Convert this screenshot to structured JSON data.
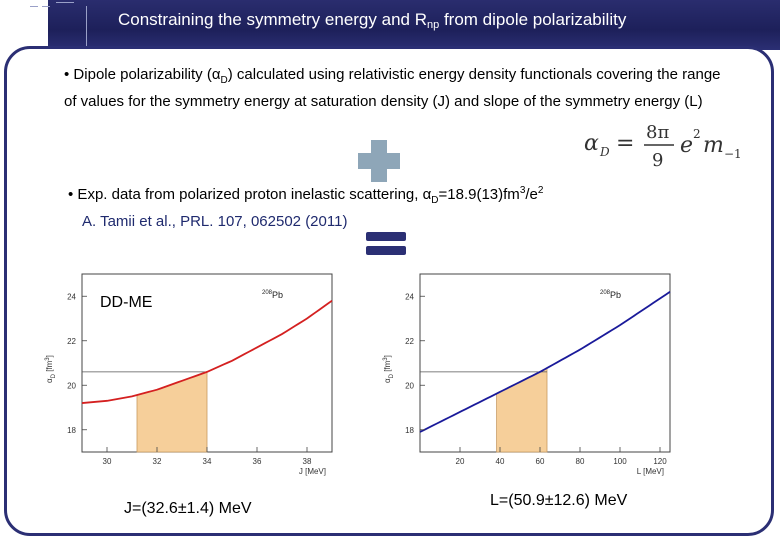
{
  "header": {
    "title_main": "Constraining the symmetry energy and R",
    "title_sub": "np",
    "title_end": " from dipole polarizability"
  },
  "bullet1": {
    "bullet": "•",
    "text_a": " Dipole polarizability (α",
    "text_sub": "D",
    "text_b": ") calculated using relativistic energy density functionals covering the range of values for the symmetry energy at saturation density (J) and slope of the symmetry energy (L)"
  },
  "formula": {
    "lhs": "α",
    "lhs_sub": "D",
    "eq": "=",
    "num": "8π",
    "den": "9",
    "rhs": "e",
    "rhs_sup": "2",
    "rhs2": "m",
    "rhs2_sub": "−1"
  },
  "bullet2": {
    "bullet": "•",
    "text_a": " Exp. data from polarized proton inelastic scattering, α",
    "text_sub": "D",
    "text_b": "=18.9(13)fm",
    "text_sup": "3",
    "text_c": "/e",
    "text_sup2": "2",
    "ref": "A. Tamii et al., PRL. 107, 062502 (2011)"
  },
  "plot_left": {
    "model_label": "DD-ME",
    "nucleus_mass": "208",
    "nucleus": "Pb",
    "ylabel": "α",
    "ylabel_sub": "D",
    "ylabel_unit": " [fm",
    "ylabel_sup": "3",
    "ylabel_end": "]",
    "xlabel": "J [MeV]",
    "yticks": [
      "18",
      "20",
      "22",
      "24"
    ],
    "xticks": [
      "30",
      "32",
      "34",
      "36",
      "38"
    ],
    "result": "J=(32.6±1.4) MeV"
  },
  "plot_right": {
    "nucleus_mass": "208",
    "nucleus": "Pb",
    "ylabel": "α",
    "ylabel_sub": "D",
    "ylabel_unit": " [fm",
    "ylabel_sup": "3",
    "ylabel_end": "]",
    "xlabel": "L [MeV]",
    "yticks": [
      "18",
      "20",
      "22",
      "24"
    ],
    "xticks": [
      "20",
      "40",
      "60",
      "80",
      "100",
      "120"
    ],
    "result": "L=(50.9±12.6) MeV"
  },
  "chart_data": [
    {
      "type": "line",
      "xlabel": "J [MeV]",
      "ylabel": "αD [fm3]",
      "xlim": [
        29,
        39
      ],
      "ylim": [
        17,
        25
      ],
      "series": [
        {
          "x": [
            29,
            30,
            31,
            32,
            33,
            34,
            35,
            36,
            37,
            38,
            39
          ],
          "values": [
            19.2,
            19.3,
            19.5,
            19.8,
            20.2,
            20.6,
            21.1,
            21.7,
            22.3,
            23.0,
            23.8
          ]
        }
      ],
      "band_x": [
        31.2,
        34.0
      ],
      "band_y": 20.6,
      "color": "#d42020",
      "band_color": "#f6cf9a"
    },
    {
      "type": "line",
      "xlabel": "L [MeV]",
      "ylabel": "αD [fm3]",
      "xlim": [
        0,
        125
      ],
      "ylim": [
        17,
        25
      ],
      "series": [
        {
          "x": [
            0,
            20,
            40,
            60,
            80,
            100,
            125
          ],
          "values": [
            17.9,
            18.8,
            19.7,
            20.6,
            21.6,
            22.7,
            24.2
          ]
        }
      ],
      "band_x": [
        38.3,
        63.5
      ],
      "band_y": 20.6,
      "color": "#1a1a9a",
      "band_color": "#f6cf9a"
    }
  ]
}
